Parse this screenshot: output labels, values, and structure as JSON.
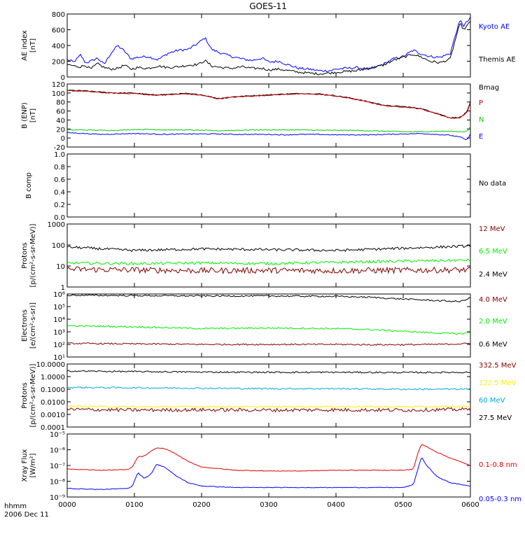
{
  "title": "GOES-11",
  "footer": {
    "line1": "hhmm",
    "line2": "2006 Dec 11"
  },
  "x_axis": {
    "ticks": [
      "0000",
      "0100",
      "0200",
      "0300",
      "0400",
      "0500",
      "0600"
    ],
    "range_hours": [
      0,
      6
    ]
  },
  "chart_data": [
    {
      "type": "line",
      "panel": "ae",
      "ylabel": [
        "AE index",
        "[nT]"
      ],
      "yscale": "linear",
      "ylim": [
        0,
        800
      ],
      "yticks": [
        0,
        200,
        400,
        600,
        800
      ],
      "ytick_labels": [
        "0",
        "200",
        "400",
        "600",
        "800"
      ],
      "x": [
        0,
        0.1,
        0.2,
        0.27,
        0.35,
        0.45,
        0.55,
        0.65,
        0.75,
        0.85,
        0.95,
        1.05,
        1.2,
        1.35,
        1.5,
        1.65,
        1.8,
        1.95,
        2.05,
        2.15,
        2.3,
        2.45,
        2.6,
        2.75,
        2.9,
        3.0,
        3.15,
        3.3,
        3.45,
        3.6,
        3.75,
        3.9,
        4.0,
        4.15,
        4.3,
        4.5,
        4.7,
        4.85,
        5.0,
        5.15,
        5.25,
        5.4,
        5.55,
        5.7,
        5.8,
        5.85,
        5.9,
        5.95,
        6.0
      ],
      "series": [
        {
          "name": "Kyoto AE",
          "color": "#0000ff",
          "values": [
            220,
            190,
            280,
            180,
            200,
            240,
            160,
            300,
            400,
            330,
            230,
            250,
            260,
            220,
            300,
            340,
            350,
            430,
            500,
            350,
            300,
            260,
            230,
            210,
            240,
            190,
            200,
            150,
            110,
            100,
            80,
            80,
            100,
            110,
            120,
            100,
            160,
            230,
            260,
            340,
            300,
            260,
            250,
            300,
            600,
            720,
            650,
            700,
            750
          ]
        },
        {
          "name": "Themis AE",
          "color": "#000000",
          "values": [
            160,
            140,
            130,
            150,
            100,
            170,
            120,
            100,
            110,
            150,
            100,
            120,
            110,
            140,
            120,
            130,
            150,
            160,
            210,
            140,
            120,
            110,
            130,
            110,
            110,
            90,
            100,
            80,
            60,
            50,
            40,
            50,
            60,
            70,
            80,
            110,
            150,
            210,
            250,
            290,
            260,
            200,
            180,
            230,
            550,
            680,
            600,
            650,
            700
          ]
        }
      ]
    },
    {
      "type": "line",
      "panel": "b",
      "ylabel": [
        "B (ENP)",
        "[nT]"
      ],
      "yscale": "linear",
      "ylim": [
        -20,
        120
      ],
      "yticks": [
        -20,
        0,
        20,
        40,
        60,
        80,
        100,
        120
      ],
      "ytick_labels": [
        "-20",
        "0",
        "20",
        "40",
        "60",
        "80",
        "100",
        "120"
      ],
      "x": [
        0,
        0.25,
        0.5,
        0.75,
        1.0,
        1.25,
        1.5,
        1.75,
        2.0,
        2.25,
        2.5,
        2.75,
        3.0,
        3.25,
        3.5,
        3.75,
        4.0,
        4.25,
        4.5,
        4.75,
        5.0,
        5.25,
        5.5,
        5.7,
        5.85,
        5.95,
        6.0
      ],
      "series": [
        {
          "name": "Bmag",
          "color": "#000000",
          "values": [
            106,
            105,
            102,
            100,
            100,
            96,
            97,
            99,
            96,
            88,
            92,
            94,
            96,
            98,
            99,
            98,
            94,
            88,
            80,
            72,
            70,
            66,
            55,
            45,
            46,
            58,
            80
          ]
        },
        {
          "name": "P",
          "color": "#cc0000",
          "values": [
            105,
            104,
            101,
            99,
            99,
            95,
            96,
            98,
            95,
            87,
            91,
            93,
            95,
            97,
            98,
            97,
            93,
            87,
            79,
            71,
            69,
            65,
            54,
            44,
            45,
            57,
            78
          ]
        },
        {
          "name": "N",
          "color": "#00cc00",
          "values": [
            18,
            18,
            17,
            17,
            19,
            19,
            18,
            18,
            17,
            16,
            17,
            18,
            18,
            18,
            18,
            17,
            17,
            17,
            16,
            15,
            14,
            14,
            15,
            15,
            14,
            15,
            25
          ]
        },
        {
          "name": "E",
          "color": "#0000ff",
          "values": [
            12,
            10,
            8,
            9,
            10,
            9,
            8,
            9,
            9,
            9,
            8,
            8,
            8,
            7,
            8,
            8,
            7,
            7,
            7,
            8,
            9,
            10,
            8,
            6,
            2,
            -5,
            10
          ]
        }
      ]
    },
    {
      "type": "line",
      "panel": "bcomp",
      "ylabel": [
        "B comp"
      ],
      "yscale": "linear",
      "ylim": [
        0,
        1
      ],
      "yticks": [
        0,
        0.2,
        0.4,
        0.6,
        0.8,
        1.0
      ],
      "ytick_labels": [
        "0.0",
        "0.2",
        "0.4",
        "0.6",
        "0.8",
        "1.0"
      ],
      "series": [],
      "note": "No data"
    },
    {
      "type": "line",
      "panel": "protons_low",
      "ylabel": [
        "Protons",
        "[p/(cm²-s-sr-MeV)]"
      ],
      "yscale": "log",
      "ylim": [
        1,
        1000
      ],
      "yticks": [
        1,
        10,
        100,
        1000
      ],
      "ytick_labels": [
        "1",
        "10",
        "100",
        "1000"
      ],
      "x": [
        0,
        1,
        2,
        3,
        4,
        5,
        6
      ],
      "series": [
        {
          "name": "12 MeV",
          "color": "#800000",
          "values": [
            7,
            6.5,
            6,
            6.2,
            6,
            6.3,
            6.5
          ]
        },
        {
          "name": "6.5 MeV",
          "color": "#00ee00",
          "values": [
            14,
            13,
            14,
            13,
            15,
            17,
            19
          ]
        },
        {
          "name": "2.4 MeV",
          "color": "#000000",
          "values": [
            80,
            55,
            65,
            60,
            55,
            70,
            90
          ]
        }
      ]
    },
    {
      "type": "line",
      "panel": "electrons",
      "ylabel": [
        "Electrons",
        "[e/(cm²-s-sr)]"
      ],
      "yscale": "log",
      "ylim": [
        10,
        1000000
      ],
      "yticks": [
        10,
        100,
        1000,
        10000,
        100000,
        1000000
      ],
      "ytick_labels": [
        "10¹",
        "10²",
        "10³",
        "10⁴",
        "10⁵",
        "10⁶"
      ],
      "x": [
        0,
        1,
        2,
        3,
        4,
        4.5,
        5,
        5.5,
        5.85,
        6
      ],
      "series": [
        {
          "name": "4.0 MeV",
          "color": "#800000",
          "values": [
            120,
            110,
            100,
            100,
            100,
            95,
            95,
            100,
            110,
            120
          ]
        },
        {
          "name": "2.0 MeV",
          "color": "#00ee00",
          "values": [
            3000,
            2500,
            1800,
            2000,
            1800,
            1500,
            1100,
            800,
            700,
            900
          ]
        },
        {
          "name": "0.6 MeV",
          "color": "#000000",
          "values": [
            800000,
            750000,
            700000,
            700000,
            650000,
            550000,
            400000,
            300000,
            250000,
            500000
          ]
        }
      ]
    },
    {
      "type": "line",
      "panel": "protons_high",
      "ylabel": [
        "Protons",
        "[p/(cm²-s-sr-MeV)]"
      ],
      "yscale": "log",
      "ylim": [
        0.0001,
        10
      ],
      "yticks": [
        0.0001,
        0.001,
        0.01,
        0.1,
        1,
        10
      ],
      "ytick_labels": [
        "0.0001",
        "0.0010",
        "0.0100",
        "0.1000",
        "1.0000",
        "10.0000"
      ],
      "x": [
        0,
        1,
        2,
        3,
        4,
        5,
        6
      ],
      "series": [
        {
          "name": "332.5 MeV",
          "color": "#800000",
          "values": [
            0.0025,
            0.0022,
            0.0023,
            0.0022,
            0.0023,
            0.0022,
            0.0025
          ]
        },
        {
          "name": "122.5 MeV",
          "color": "#ffee00",
          "values": [
            0.0045,
            0.004,
            0.0042,
            0.004,
            0.0042,
            0.004,
            0.0042
          ]
        },
        {
          "name": "60 MeV",
          "color": "#00aadd",
          "values": [
            0.14,
            0.13,
            0.12,
            0.11,
            0.11,
            0.1,
            0.1
          ]
        },
        {
          "name": "27.5 MeV",
          "color": "#000000",
          "values": [
            2.8,
            2.5,
            2.3,
            2.2,
            2.2,
            2.1,
            2.2
          ]
        }
      ]
    },
    {
      "type": "line",
      "panel": "xray",
      "ylabel": [
        "Xray Flux",
        "[W/m²]"
      ],
      "yscale": "log",
      "ylim": [
        1e-09,
        1e-05
      ],
      "yticks": [
        1e-09,
        1e-08,
        1e-07,
        1e-06,
        1e-05
      ],
      "ytick_labels": [
        "10⁻⁹",
        "10⁻⁸",
        "10⁻⁷",
        "10⁻⁶",
        "10⁻⁵"
      ],
      "x": [
        0,
        0.5,
        0.9,
        0.97,
        1.05,
        1.15,
        1.25,
        1.33,
        1.45,
        1.6,
        1.8,
        2.0,
        2.5,
        3.0,
        3.5,
        4.0,
        4.5,
        5.0,
        5.15,
        5.22,
        5.27,
        5.35,
        5.5,
        5.7,
        6.0
      ],
      "series": [
        {
          "name": "0.1-0.8 nm",
          "color": "#dd0000",
          "values": [
            6e-08,
            5e-08,
            5.5e-08,
            8e-08,
            3.5e-07,
            4e-07,
            8e-07,
            1.3e-06,
            1.2e-06,
            6e-07,
            1.8e-07,
            8e-08,
            5e-08,
            4.5e-08,
            4.5e-08,
            5e-08,
            5e-08,
            5e-08,
            6e-08,
            6e-07,
            2.2e-06,
            1.6e-06,
            7e-07,
            3e-07,
            1e-07
          ]
        },
        {
          "name": "0.05-0.3 nm",
          "color": "#0000ff",
          "values": [
            3.5e-09,
            3e-09,
            3.5e-09,
            5e-09,
            3.5e-08,
            1.5e-08,
            3e-08,
            1.2e-07,
            8e-08,
            2.5e-08,
            8e-09,
            5e-09,
            4e-09,
            4e-09,
            4e-09,
            4e-09,
            4e-09,
            4e-09,
            6e-09,
            6e-08,
            3.5e-07,
            1e-07,
            2e-08,
            8e-09,
            5e-09
          ]
        }
      ]
    }
  ]
}
